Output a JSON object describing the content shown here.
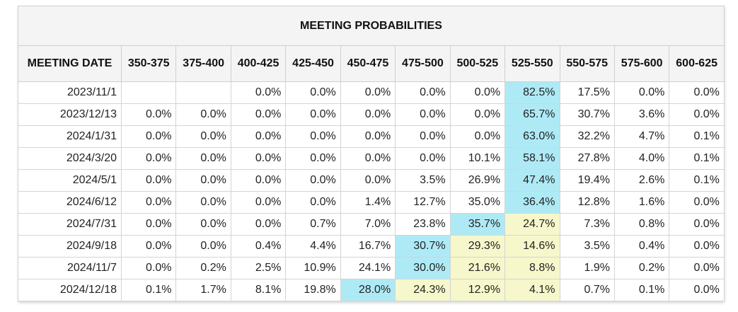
{
  "table": {
    "title": "MEETING PROBABILITIES",
    "headers": [
      "MEETING DATE",
      "350-375",
      "375-400",
      "400-425",
      "425-450",
      "450-475",
      "475-500",
      "500-525",
      "525-550",
      "550-575",
      "575-600",
      "600-625"
    ],
    "highlight_colors": {
      "b": "#aeeaf5",
      "y": "#f7f7cc"
    },
    "rows": [
      {
        "date": "2023/11/1",
        "values": [
          "",
          "",
          "0.0%",
          "0.0%",
          "0.0%",
          "0.0%",
          "0.0%",
          "82.5%",
          "17.5%",
          "0.0%",
          "0.0%"
        ],
        "hl": [
          "",
          "",
          "",
          "",
          "",
          "",
          "",
          "b",
          "",
          "",
          ""
        ]
      },
      {
        "date": "2023/12/13",
        "values": [
          "0.0%",
          "0.0%",
          "0.0%",
          "0.0%",
          "0.0%",
          "0.0%",
          "0.0%",
          "65.7%",
          "30.7%",
          "3.6%",
          "0.0%"
        ],
        "hl": [
          "",
          "",
          "",
          "",
          "",
          "",
          "",
          "b",
          "",
          "",
          ""
        ]
      },
      {
        "date": "2024/1/31",
        "values": [
          "0.0%",
          "0.0%",
          "0.0%",
          "0.0%",
          "0.0%",
          "0.0%",
          "0.0%",
          "63.0%",
          "32.2%",
          "4.7%",
          "0.1%"
        ],
        "hl": [
          "",
          "",
          "",
          "",
          "",
          "",
          "",
          "b",
          "",
          "",
          ""
        ]
      },
      {
        "date": "2024/3/20",
        "values": [
          "0.0%",
          "0.0%",
          "0.0%",
          "0.0%",
          "0.0%",
          "0.0%",
          "10.1%",
          "58.1%",
          "27.8%",
          "4.0%",
          "0.1%"
        ],
        "hl": [
          "",
          "",
          "",
          "",
          "",
          "",
          "",
          "b",
          "",
          "",
          ""
        ]
      },
      {
        "date": "2024/5/1",
        "values": [
          "0.0%",
          "0.0%",
          "0.0%",
          "0.0%",
          "0.0%",
          "3.5%",
          "26.9%",
          "47.4%",
          "19.4%",
          "2.6%",
          "0.1%"
        ],
        "hl": [
          "",
          "",
          "",
          "",
          "",
          "",
          "",
          "b",
          "",
          "",
          ""
        ]
      },
      {
        "date": "2024/6/12",
        "values": [
          "0.0%",
          "0.0%",
          "0.0%",
          "0.0%",
          "1.4%",
          "12.7%",
          "35.0%",
          "36.4%",
          "12.8%",
          "1.6%",
          "0.0%"
        ],
        "hl": [
          "",
          "",
          "",
          "",
          "",
          "",
          "",
          "b",
          "",
          "",
          ""
        ]
      },
      {
        "date": "2024/7/31",
        "values": [
          "0.0%",
          "0.0%",
          "0.0%",
          "0.7%",
          "7.0%",
          "23.8%",
          "35.7%",
          "24.7%",
          "7.3%",
          "0.8%",
          "0.0%"
        ],
        "hl": [
          "",
          "",
          "",
          "",
          "",
          "",
          "b",
          "y",
          "",
          "",
          ""
        ]
      },
      {
        "date": "2024/9/18",
        "values": [
          "0.0%",
          "0.0%",
          "0.4%",
          "4.4%",
          "16.7%",
          "30.7%",
          "29.3%",
          "14.6%",
          "3.5%",
          "0.4%",
          "0.0%"
        ],
        "hl": [
          "",
          "",
          "",
          "",
          "",
          "b",
          "y",
          "y",
          "",
          "",
          ""
        ]
      },
      {
        "date": "2024/11/7",
        "values": [
          "0.0%",
          "0.2%",
          "2.5%",
          "10.9%",
          "24.1%",
          "30.0%",
          "21.6%",
          "8.8%",
          "1.9%",
          "0.2%",
          "0.0%"
        ],
        "hl": [
          "",
          "",
          "",
          "",
          "",
          "b",
          "y",
          "y",
          "",
          "",
          ""
        ]
      },
      {
        "date": "2024/12/18",
        "values": [
          "0.1%",
          "1.7%",
          "8.1%",
          "19.8%",
          "28.0%",
          "24.3%",
          "12.9%",
          "4.1%",
          "0.7%",
          "0.1%",
          "0.0%"
        ],
        "hl": [
          "",
          "",
          "",
          "",
          "b",
          "y",
          "y",
          "y",
          "",
          "",
          ""
        ]
      }
    ]
  }
}
